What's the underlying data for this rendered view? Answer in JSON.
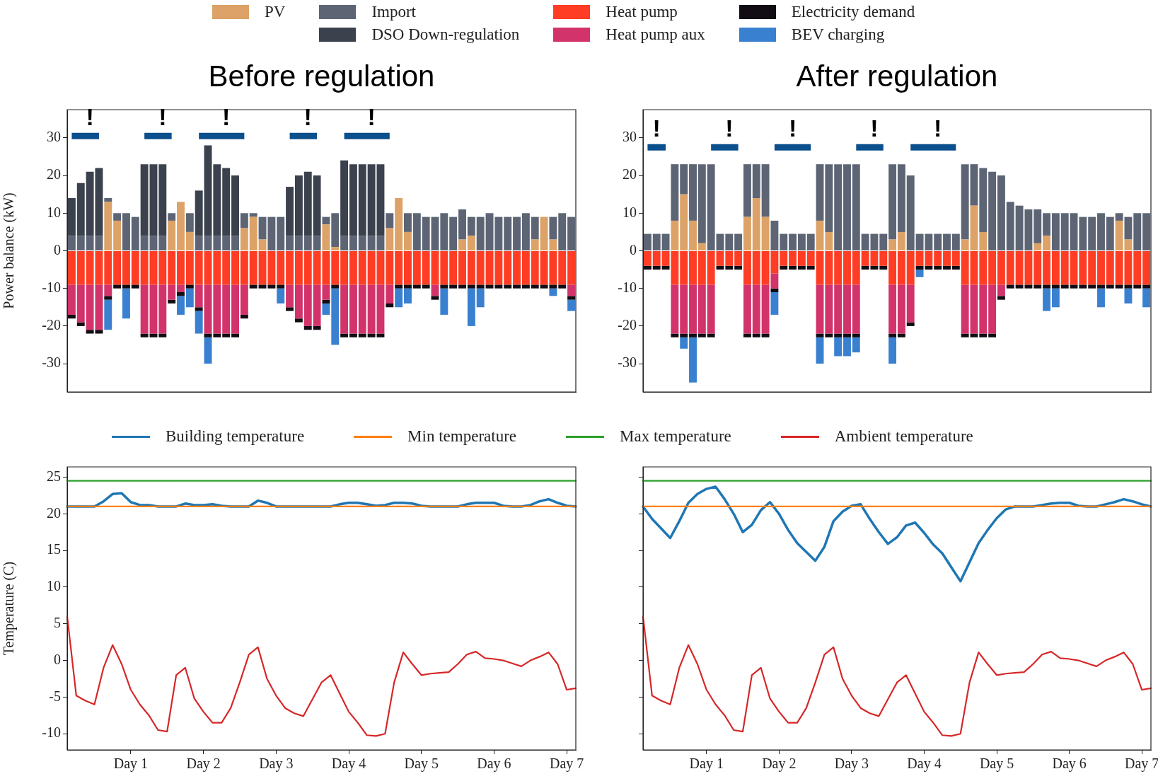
{
  "chart_data": [
    {
      "type": "bar",
      "title": "Before regulation",
      "ylabel": "Power balance (kW)",
      "stacked": true,
      "legend": "top",
      "tick_labels": "y",
      "categories": [
        null,
        null,
        null,
        null,
        null,
        null,
        null,
        null,
        null,
        null,
        null,
        null,
        null,
        null,
        null,
        null,
        null,
        null,
        null,
        null,
        null,
        null,
        null,
        null,
        null,
        null,
        null,
        null,
        null,
        null,
        null,
        null,
        null,
        null,
        null,
        null,
        null,
        null,
        null,
        null,
        null,
        null,
        null,
        null,
        null,
        null,
        null,
        null,
        null,
        null,
        null,
        null,
        null,
        null,
        null,
        null
      ],
      "ylim": [
        -37.5,
        37.5
      ],
      "yticks": [
        -30,
        -20,
        -10,
        0,
        10,
        20,
        30
      ],
      "series": [
        {
          "name": "PV",
          "color": "#dca267",
          "values": [
            0,
            0,
            0,
            0,
            13,
            8,
            0,
            0,
            0,
            0,
            0,
            8,
            13,
            5,
            0,
            0,
            0,
            0,
            0,
            6,
            9,
            3,
            0,
            0,
            0,
            0,
            0,
            0,
            7,
            1,
            0,
            0,
            0,
            0,
            0,
            6,
            14,
            5,
            0,
            0,
            0,
            0,
            0,
            3,
            4,
            0,
            0,
            0,
            0,
            0,
            0,
            3,
            9,
            3,
            0,
            0
          ]
        },
        {
          "name": "Import",
          "color": "#5d6575",
          "values": [
            4,
            4,
            4,
            4,
            1,
            2,
            10,
            9,
            4,
            4,
            4,
            2,
            0,
            5,
            4,
            4,
            4,
            4,
            4,
            4,
            1,
            6,
            9,
            9,
            4,
            4,
            4,
            4,
            2,
            9,
            4,
            4,
            4,
            4,
            4,
            4,
            0,
            5,
            10,
            9,
            9,
            10,
            9,
            8,
            5,
            9,
            10,
            9,
            9,
            9,
            10,
            6,
            0,
            6,
            10,
            9
          ]
        },
        {
          "name": "DSO Down-regulation",
          "color": "#3b414d",
          "values": [
            10,
            14,
            17,
            18,
            0,
            0,
            0,
            0,
            19,
            19,
            19,
            0,
            0,
            0,
            12,
            24,
            19,
            18,
            16,
            0,
            0,
            0,
            0,
            0,
            13,
            16,
            17,
            16,
            0,
            0,
            20,
            19,
            19,
            19,
            19,
            0,
            0,
            0,
            0,
            0,
            0,
            0,
            0,
            0,
            0,
            0,
            0,
            0,
            0,
            0,
            0,
            0,
            0,
            0,
            0,
            0
          ]
        },
        {
          "name": "Heat pump",
          "color": "#ff3d24",
          "values": [
            -9,
            -9,
            -9,
            -9,
            -9,
            -9,
            -9,
            -9,
            -9,
            -9,
            -9,
            -9,
            -9,
            -9,
            -9,
            -9,
            -9,
            -9,
            -9,
            -9,
            -9,
            -9,
            -9,
            -9,
            -9,
            -9,
            -9,
            -9,
            -9,
            -9,
            -9,
            -9,
            -9,
            -9,
            -9,
            -9,
            -9,
            -9,
            -9,
            -9,
            -9,
            -9,
            -9,
            -9,
            -9,
            -9,
            -9,
            -9,
            -9,
            -9,
            -9,
            -9,
            -9,
            -9,
            -9,
            -9
          ]
        },
        {
          "name": "Heat pump aux",
          "color": "#d2336a",
          "values": [
            -8,
            -10,
            -12,
            -12,
            -3,
            0,
            0,
            0,
            -13,
            -13,
            -13,
            -4,
            -2,
            0,
            -6,
            -13,
            -13,
            -13,
            -13,
            -8,
            0,
            0,
            0,
            0,
            -6,
            -9,
            -11,
            -11,
            -4,
            0,
            -13,
            -13,
            -13,
            -13,
            -13,
            -5,
            0,
            0,
            0,
            0,
            -3,
            0,
            0,
            0,
            0,
            0,
            0,
            0,
            0,
            0,
            0,
            0,
            0,
            0,
            0,
            -3
          ]
        },
        {
          "name": "Electricity demand",
          "color": "#120c14",
          "values": [
            -1,
            -1,
            -1,
            -1,
            -1,
            -1,
            -1,
            -1,
            -1,
            -1,
            -1,
            -1,
            -1,
            -1,
            -1,
            -1,
            -1,
            -1,
            -1,
            -1,
            -1,
            -1,
            -1,
            -1,
            -1,
            -1,
            -1,
            -1,
            -1,
            -1,
            -1,
            -1,
            -1,
            -1,
            -1,
            -1,
            -1,
            -1,
            -1,
            -1,
            -1,
            -1,
            -1,
            -1,
            -1,
            -1,
            -1,
            -1,
            -1,
            -1,
            -1,
            -1,
            -1,
            -1,
            -1,
            -1
          ]
        },
        {
          "name": "BEV charging",
          "color": "#3a80d0",
          "values": [
            0,
            0,
            0,
            0,
            -8,
            0,
            -8,
            0,
            0,
            0,
            0,
            0,
            -5,
            -5,
            -6,
            -7,
            0,
            0,
            0,
            0,
            0,
            0,
            0,
            -4,
            0,
            0,
            0,
            0,
            -3,
            -15,
            0,
            0,
            0,
            0,
            0,
            0,
            -5,
            -4,
            0,
            0,
            0,
            -7,
            0,
            0,
            -10,
            -5,
            0,
            0,
            0,
            0,
            0,
            0,
            0,
            -2,
            0,
            -3
          ]
        },
        {
          "type": "line",
          "color": "#0b4f8c",
          "values": [
            30.5,
            30.5,
            30.5,
            30.5,
            null,
            null,
            null,
            null,
            30.5,
            30.5,
            30.5,
            30.5,
            null,
            null,
            30.5,
            30.5,
            30.5,
            30.5,
            30.5,
            30.5,
            null,
            null,
            null,
            null,
            30.5,
            30.5,
            30.5,
            30.5,
            null,
            null,
            30.5,
            30.5,
            30.5,
            30.5,
            30.5,
            30.5,
            null,
            null,
            null,
            null,
            null,
            null,
            null,
            null,
            null,
            null,
            null,
            null,
            null,
            null,
            null,
            null,
            null,
            null,
            null,
            null
          ],
          "value_labels": [
            null,
            null,
            "!",
            null,
            null,
            null,
            null,
            null,
            null,
            null,
            "!",
            null,
            null,
            null,
            null,
            null,
            null,
            "!",
            null,
            null,
            null,
            null,
            null,
            null,
            null,
            null,
            "!",
            null,
            null,
            null,
            null,
            null,
            null,
            "!",
            null,
            null,
            null,
            null,
            null,
            null,
            null,
            null,
            null,
            null,
            null,
            null,
            null,
            null,
            null,
            null,
            null,
            null,
            null,
            null,
            null,
            null
          ]
        }
      ]
    },
    {
      "type": "bar",
      "title": "After regulation",
      "stacked": true,
      "tick_labels": "y",
      "categories": [
        null,
        null,
        null,
        null,
        null,
        null,
        null,
        null,
        null,
        null,
        null,
        null,
        null,
        null,
        null,
        null,
        null,
        null,
        null,
        null,
        null,
        null,
        null,
        null,
        null,
        null,
        null,
        null,
        null,
        null,
        null,
        null,
        null,
        null,
        null,
        null,
        null,
        null,
        null,
        null,
        null,
        null,
        null,
        null,
        null,
        null,
        null,
        null,
        null,
        null,
        null,
        null,
        null,
        null,
        null,
        null
      ],
      "ylim": [
        -37.5,
        37.5
      ],
      "yticks": [
        -30,
        -20,
        -10,
        0,
        10,
        20,
        30
      ],
      "series": [
        {
          "color": "#dca267",
          "values": [
            0,
            0,
            0,
            8,
            15,
            8,
            2,
            0,
            0,
            0,
            0,
            9,
            14,
            9,
            0,
            0,
            0,
            0,
            0,
            8,
            5,
            0,
            0,
            0,
            0,
            0,
            0,
            3,
            5,
            0,
            0,
            0,
            0,
            0,
            0,
            3,
            12,
            5,
            0,
            0,
            0,
            0,
            0,
            2,
            4,
            0,
            0,
            0,
            0,
            0,
            0,
            0,
            8,
            3,
            0,
            0
          ]
        },
        {
          "color": "#5d6575",
          "values": [
            4.5,
            4.5,
            4.5,
            15,
            8,
            15,
            21,
            23,
            4.5,
            4.5,
            4.5,
            14,
            9,
            14,
            8,
            4.5,
            4.5,
            4.5,
            4.5,
            15,
            18,
            23,
            23,
            23,
            4.5,
            4.5,
            4.5,
            20,
            18,
            20,
            4.5,
            4.5,
            4.5,
            4.5,
            4.5,
            20,
            11,
            17,
            21,
            20,
            13,
            12,
            11,
            9,
            6,
            10,
            10,
            10,
            9,
            9,
            10,
            9,
            2,
            6,
            10,
            10
          ]
        },
        {
          "color": "#3b414d",
          "values": [
            0,
            0,
            0,
            0,
            0,
            0,
            0,
            0,
            0,
            0,
            0,
            0,
            0,
            0,
            0,
            0,
            0,
            0,
            0,
            0,
            0,
            0,
            0,
            0,
            0,
            0,
            0,
            0,
            0,
            0,
            0,
            0,
            0,
            0,
            0,
            0,
            0,
            0,
            0,
            0,
            0,
            0,
            0,
            0,
            0,
            0,
            0,
            0,
            0,
            0,
            0,
            0,
            0,
            0,
            0,
            0
          ]
        },
        {
          "color": "#ff3d24",
          "values": [
            -4,
            -4,
            -4,
            -9,
            -9,
            -9,
            -9,
            -9,
            -4,
            -4,
            -4,
            -9,
            -9,
            -9,
            -6,
            -4,
            -4,
            -4,
            -4,
            -9,
            -9,
            -9,
            -9,
            -9,
            -4,
            -4,
            -4,
            -9,
            -9,
            -9,
            -4,
            -4,
            -4,
            -4,
            -4,
            -9,
            -9,
            -9,
            -9,
            -9,
            -9,
            -9,
            -9,
            -9,
            -9,
            -9,
            -9,
            -9,
            -9,
            -9,
            -9,
            -9,
            -9,
            -9,
            -9,
            -9
          ]
        },
        {
          "color": "#d2336a",
          "values": [
            0,
            0,
            0,
            -13,
            -13,
            -13,
            -13,
            -13,
            0,
            0,
            0,
            -13,
            -13,
            -13,
            -4,
            0,
            0,
            0,
            0,
            -13,
            -13,
            -13,
            -13,
            -13,
            0,
            0,
            0,
            -13,
            -13,
            -10,
            0,
            0,
            0,
            0,
            0,
            -13,
            -13,
            -13,
            -13,
            -3,
            0,
            0,
            0,
            0,
            0,
            0,
            0,
            0,
            0,
            0,
            0,
            0,
            0,
            0,
            0,
            0
          ]
        },
        {
          "color": "#120c14",
          "values": [
            -1,
            -1,
            -1,
            -1,
            -1,
            -1,
            -1,
            -1,
            -1,
            -1,
            -1,
            -1,
            -1,
            -1,
            -1,
            -1,
            -1,
            -1,
            -1,
            -1,
            -1,
            -1,
            -1,
            -1,
            -1,
            -1,
            -1,
            -1,
            -1,
            -1,
            -1,
            -1,
            -1,
            -1,
            -1,
            -1,
            -1,
            -1,
            -1,
            -1,
            -1,
            -1,
            -1,
            -1,
            -1,
            -1,
            -1,
            -1,
            -1,
            -1,
            -1,
            -1,
            -1,
            -1,
            -1,
            -1
          ]
        },
        {
          "color": "#3a80d0",
          "values": [
            0,
            0,
            0,
            0,
            -3,
            -12,
            0,
            0,
            0,
            0,
            0,
            0,
            0,
            0,
            -6,
            0,
            0,
            0,
            0,
            -7,
            0,
            -5,
            -5,
            -4,
            0,
            0,
            0,
            -7,
            0,
            0,
            -2,
            0,
            0,
            0,
            0,
            0,
            0,
            0,
            0,
            0,
            0,
            0,
            0,
            0,
            -6,
            -5,
            0,
            0,
            0,
            0,
            -5,
            0,
            0,
            -4,
            0,
            -5
          ]
        },
        {
          "type": "line",
          "color": "#0b4f8c",
          "values": [
            27.5,
            27.5,
            27.5,
            null,
            null,
            null,
            null,
            27.5,
            27.5,
            27.5,
            27.5,
            null,
            null,
            null,
            27.5,
            27.5,
            27.5,
            27.5,
            27.5,
            null,
            null,
            null,
            null,
            27.5,
            27.5,
            27.5,
            27.5,
            null,
            null,
            27.5,
            27.5,
            27.5,
            27.5,
            27.5,
            27.5,
            null,
            null,
            null,
            null,
            null,
            null,
            null,
            null,
            null,
            null,
            null,
            null,
            null,
            null,
            null,
            null,
            null,
            null,
            null,
            null,
            null
          ],
          "value_labels": [
            null,
            "!",
            null,
            null,
            null,
            null,
            null,
            null,
            null,
            "!",
            null,
            null,
            null,
            null,
            null,
            null,
            "!",
            null,
            null,
            null,
            null,
            null,
            null,
            null,
            null,
            "!",
            null,
            null,
            null,
            null,
            null,
            null,
            "!",
            null,
            null,
            null,
            null,
            null,
            null,
            null,
            null,
            null,
            null,
            null,
            null,
            null,
            null,
            null,
            null,
            null,
            null,
            null,
            null,
            null,
            null,
            null
          ]
        }
      ]
    },
    {
      "type": "line",
      "ylabel": "Temperature (C)",
      "legend": "top",
      "ylim": [
        -12.2,
        26.4
      ],
      "yticks": [
        -10,
        -5,
        0,
        5,
        10,
        15,
        20,
        25
      ],
      "categories": [
        null,
        null,
        null,
        null,
        null,
        null,
        null,
        "Day 1",
        null,
        null,
        null,
        null,
        null,
        null,
        null,
        "Day 2",
        null,
        null,
        null,
        null,
        null,
        null,
        null,
        "Day 3",
        null,
        null,
        null,
        null,
        null,
        null,
        null,
        "Day 4",
        null,
        null,
        null,
        null,
        null,
        null,
        null,
        "Day 5",
        null,
        null,
        null,
        null,
        null,
        null,
        null,
        "Day 6",
        null,
        null,
        null,
        null,
        null,
        null,
        null,
        "Day 7",
        null
      ],
      "series": [
        {
          "name": "Building temperature",
          "color": "#1f77b4",
          "values": [
            21,
            21,
            21,
            21,
            21.7,
            22.7,
            22.8,
            21.6,
            21.2,
            21.2,
            21,
            21,
            21,
            21.4,
            21.2,
            21.2,
            21.3,
            21.1,
            21,
            21,
            21,
            21.8,
            21.5,
            21,
            21,
            21,
            21,
            21,
            21,
            21,
            21.3,
            21.5,
            21.5,
            21.3,
            21.1,
            21.2,
            21.5,
            21.5,
            21.4,
            21.1,
            21,
            21,
            21,
            21,
            21.3,
            21.5,
            21.5,
            21.5,
            21.1,
            21,
            21,
            21.2,
            21.7,
            22,
            21.5,
            21.1,
            21
          ]
        },
        {
          "name": "Min temperature",
          "color": "#ff7f0e",
          "values": [
            21,
            21,
            21,
            21,
            21,
            21,
            21,
            21,
            21,
            21,
            21,
            21,
            21,
            21,
            21,
            21,
            21,
            21,
            21,
            21,
            21,
            21,
            21,
            21,
            21,
            21,
            21,
            21,
            21,
            21,
            21,
            21,
            21,
            21,
            21,
            21,
            21,
            21,
            21,
            21,
            21,
            21,
            21,
            21,
            21,
            21,
            21,
            21,
            21,
            21,
            21,
            21,
            21,
            21,
            21,
            21,
            21
          ]
        },
        {
          "name": "Max temperature",
          "color": "#2ca02c",
          "values": [
            24.5,
            24.5,
            24.5,
            24.5,
            24.5,
            24.5,
            24.5,
            24.5,
            24.5,
            24.5,
            24.5,
            24.5,
            24.5,
            24.5,
            24.5,
            24.5,
            24.5,
            24.5,
            24.5,
            24.5,
            24.5,
            24.5,
            24.5,
            24.5,
            24.5,
            24.5,
            24.5,
            24.5,
            24.5,
            24.5,
            24.5,
            24.5,
            24.5,
            24.5,
            24.5,
            24.5,
            24.5,
            24.5,
            24.5,
            24.5,
            24.5,
            24.5,
            24.5,
            24.5,
            24.5,
            24.5,
            24.5,
            24.5,
            24.5,
            24.5,
            24.5,
            24.5,
            24.5,
            24.5,
            24.5,
            24.5,
            24.5
          ]
        },
        {
          "name": "Ambient temperature",
          "color": "#d62728",
          "values": [
            6,
            -4.8,
            -5.5,
            -6,
            -1,
            2.1,
            -0.5,
            -4,
            -6,
            -7.5,
            -9.5,
            -9.7,
            -2,
            -1,
            -5.2,
            -7,
            -8.5,
            -8.5,
            -6.5,
            -3,
            0.8,
            1.8,
            -2.5,
            -4.8,
            -6.5,
            -7.2,
            -7.6,
            -5.3,
            -3,
            -2,
            -4.5,
            -7,
            -8.5,
            -10.2,
            -10.3,
            -10,
            -3,
            1.1,
            -0.5,
            -2,
            -1.8,
            -1.7,
            -1.6,
            -0.5,
            0.8,
            1.2,
            0.3,
            0.2,
            0,
            -0.4,
            -0.8,
            0,
            0.5,
            1.1,
            -0.5,
            -4,
            -3.8
          ]
        }
      ]
    },
    {
      "type": "line",
      "tick_labels": "x",
      "ylim": [
        -12.2,
        26.4
      ],
      "yticks": [
        -10,
        -5,
        0,
        5,
        10,
        15,
        20,
        25
      ],
      "categories": [
        null,
        null,
        null,
        null,
        null,
        null,
        null,
        "Day 1",
        null,
        null,
        null,
        null,
        null,
        null,
        null,
        "Day 2",
        null,
        null,
        null,
        null,
        null,
        null,
        null,
        "Day 3",
        null,
        null,
        null,
        null,
        null,
        null,
        null,
        "Day 4",
        null,
        null,
        null,
        null,
        null,
        null,
        null,
        "Day 5",
        null,
        null,
        null,
        null,
        null,
        null,
        null,
        "Day 6",
        null,
        null,
        null,
        null,
        null,
        null,
        null,
        "Day 7",
        null
      ],
      "series": [
        {
          "color": "#1f77b4",
          "values": [
            21,
            19.3,
            18,
            16.7,
            19,
            21.5,
            22.7,
            23.4,
            23.7,
            22,
            20,
            17.5,
            18.5,
            20.5,
            21.6,
            20,
            17.8,
            16,
            14.8,
            13.6,
            15.5,
            19,
            20.3,
            21.1,
            21.3,
            19.3,
            17.5,
            15.9,
            16.8,
            18.4,
            18.8,
            17.4,
            15.8,
            14.6,
            12.7,
            10.8,
            13.4,
            16,
            17.8,
            19.4,
            20.6,
            21,
            21,
            21,
            21.2,
            21.4,
            21.5,
            21.5,
            21.1,
            21,
            21,
            21.3,
            21.6,
            22,
            21.7,
            21.3,
            21
          ]
        },
        {
          "color": "#ff7f0e",
          "values": [
            21,
            21,
            21,
            21,
            21,
            21,
            21,
            21,
            21,
            21,
            21,
            21,
            21,
            21,
            21,
            21,
            21,
            21,
            21,
            21,
            21,
            21,
            21,
            21,
            21,
            21,
            21,
            21,
            21,
            21,
            21,
            21,
            21,
            21,
            21,
            21,
            21,
            21,
            21,
            21,
            21,
            21,
            21,
            21,
            21,
            21,
            21,
            21,
            21,
            21,
            21,
            21,
            21,
            21,
            21,
            21,
            21
          ]
        },
        {
          "color": "#2ca02c",
          "values": [
            24.5,
            24.5,
            24.5,
            24.5,
            24.5,
            24.5,
            24.5,
            24.5,
            24.5,
            24.5,
            24.5,
            24.5,
            24.5,
            24.5,
            24.5,
            24.5,
            24.5,
            24.5,
            24.5,
            24.5,
            24.5,
            24.5,
            24.5,
            24.5,
            24.5,
            24.5,
            24.5,
            24.5,
            24.5,
            24.5,
            24.5,
            24.5,
            24.5,
            24.5,
            24.5,
            24.5,
            24.5,
            24.5,
            24.5,
            24.5,
            24.5,
            24.5,
            24.5,
            24.5,
            24.5,
            24.5,
            24.5,
            24.5,
            24.5,
            24.5,
            24.5,
            24.5,
            24.5,
            24.5,
            24.5,
            24.5,
            24.5
          ]
        },
        {
          "color": "#d62728",
          "values": [
            6,
            -4.8,
            -5.5,
            -6,
            -1,
            2.1,
            -0.5,
            -4,
            -6,
            -7.5,
            -9.5,
            -9.7,
            -2,
            -1,
            -5.2,
            -7,
            -8.5,
            -8.5,
            -6.5,
            -3,
            0.8,
            1.8,
            -2.5,
            -4.8,
            -6.5,
            -7.2,
            -7.6,
            -5.3,
            -3,
            -2,
            -4.5,
            -7,
            -8.5,
            -10.2,
            -10.3,
            -10,
            -3,
            1.1,
            -0.5,
            -2,
            -1.8,
            -1.7,
            -1.6,
            -0.5,
            0.8,
            1.2,
            0.3,
            0.2,
            0,
            -0.4,
            -0.8,
            0,
            0.5,
            1.1,
            -0.5,
            -4,
            -3.8
          ]
        }
      ]
    }
  ]
}
